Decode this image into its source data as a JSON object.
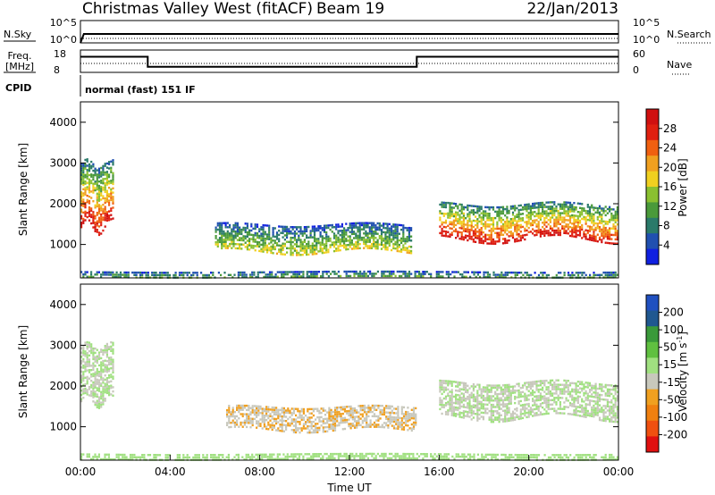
{
  "header": {
    "station": "Christmas Valley West (fitACF)",
    "beam": "Beam 19",
    "date": "22/Jan/2013"
  },
  "top_panels": {
    "nsky_label": "N.Sky",
    "nsearch_label": "N.Search",
    "left_ticks": [
      "10^5",
      "10^0"
    ],
    "right_ticks": [
      "10^5",
      "10^0"
    ],
    "freq_label": "Freq. [MHz]",
    "freq_ticks": [
      "18",
      "8"
    ],
    "nave_label": "Nave",
    "nave_ticks": [
      "60",
      "0"
    ],
    "cpid_label": "CPID",
    "cpid_text": "normal (fast) 151 IF"
  },
  "chart_data": [
    {
      "type": "line",
      "title": "N.Sky / N.Search",
      "x_range": [
        "00:00",
        "24:00"
      ],
      "series": [
        {
          "name": "N.Sky",
          "style": "solid",
          "x": [
            0,
            0.15,
            24
          ],
          "y": [
            1,
            100,
            100
          ]
        },
        {
          "name": "N.Search",
          "style": "dotted",
          "x": [
            0,
            24
          ],
          "y": [
            10,
            10
          ]
        }
      ]
    },
    {
      "type": "line",
      "title": "Freq. / Nave",
      "x_range": [
        "00:00",
        "24:00"
      ],
      "ylim_freq": [
        8,
        18
      ],
      "ylim_nave": [
        0,
        60
      ],
      "series": [
        {
          "name": "Freq.",
          "style": "solid",
          "x": [
            0,
            3,
            3,
            15,
            15,
            24
          ],
          "y": [
            15,
            15,
            10.5,
            10.5,
            15,
            15
          ]
        },
        {
          "name": "Nave",
          "style": "dotted",
          "x": [
            0,
            24
          ],
          "y": [
            24,
            24
          ]
        }
      ]
    },
    {
      "type": "heatmap",
      "quantity": "Power",
      "ylabel": "Slant Range [km]",
      "yticks": [
        1000,
        2000,
        3000,
        4000
      ],
      "ylim": [
        180,
        4500
      ],
      "colorbar_label": "Power [dB]",
      "colorbar_ticks": [
        4,
        8,
        12,
        16,
        20,
        24,
        28
      ],
      "colorbar_range": [
        0,
        30
      ],
      "colors": [
        "#1020e0",
        "#2050b0",
        "#2a7a6a",
        "#4a9a3a",
        "#8ac030",
        "#f0d020",
        "#f0a020",
        "#f06010",
        "#e02010",
        "#d01010"
      ],
      "features": [
        {
          "h": [
            0.0,
            1.5
          ],
          "range_km": [
            1400,
            3000
          ],
          "power_db": 28
        },
        {
          "h": [
            6.0,
            14.8
          ],
          "range_km": [
            800,
            1500
          ],
          "power_db": 16
        },
        {
          "h": [
            16.0,
            24.0
          ],
          "range_km": [
            1100,
            2000
          ],
          "power_db": 28
        },
        {
          "h": [
            0.0,
            24.0
          ],
          "range_km": [
            180,
            350
          ],
          "power_db": 10
        }
      ]
    },
    {
      "type": "heatmap",
      "quantity": "Velocity",
      "ylabel": "Slant Range [km]",
      "xlabel": "Time UT",
      "xticks": [
        "00:00",
        "04:00",
        "08:00",
        "12:00",
        "16:00",
        "20:00",
        "00:00"
      ],
      "yticks": [
        1000,
        2000,
        3000,
        4000
      ],
      "ylim": [
        180,
        4500
      ],
      "colorbar_label": "Velocity [m s^-1]",
      "colorbar_ticks": [
        "200",
        "100",
        "50",
        "15",
        "-15",
        "-50",
        "-100",
        "-200"
      ],
      "colorbar_range": [
        -250,
        250
      ],
      "colors": [
        "#2050c0",
        "#205890",
        "#3a9a3a",
        "#60c040",
        "#a0e080",
        "#c8c8bc",
        "#f0a020",
        "#f08010",
        "#f05010",
        "#e01010"
      ],
      "features": [
        {
          "h": [
            0.0,
            1.5
          ],
          "range_km": [
            1600,
            3000
          ],
          "velocity": 0
        },
        {
          "h": [
            6.5,
            15.0
          ],
          "range_km": [
            900,
            1500
          ],
          "velocity": -45
        },
        {
          "h": [
            16.0,
            24.0
          ],
          "range_km": [
            1200,
            2100
          ],
          "velocity": 0
        },
        {
          "h": [
            0.0,
            24.0
          ],
          "range_km": [
            180,
            350
          ],
          "velocity": 20
        }
      ]
    }
  ],
  "figure": {
    "units_label": "[km]",
    "power_colorbar_label": "Power [dB]",
    "velocity_colorbar_label_main": "Velocity [m s",
    "velocity_colorbar_label_sup": "-1",
    "velocity_colorbar_label_end": "]",
    "ylabel": "Slant Range [km]",
    "xlabel": "Time UT"
  }
}
